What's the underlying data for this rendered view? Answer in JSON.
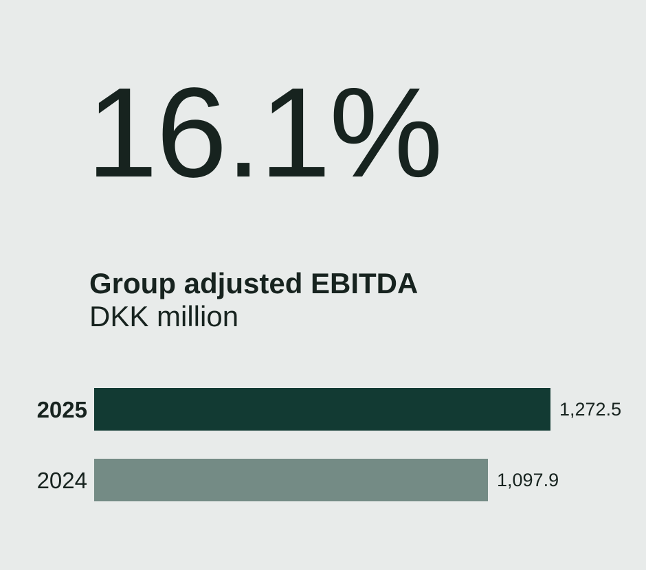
{
  "headline": "16.1%",
  "title_block": {
    "title": "Group adjusted EBITDA",
    "unit": "DKK million"
  },
  "colors": {
    "background": "#e8ebea",
    "text": "#17231f",
    "bar_current": "#123a33",
    "bar_previous": "#748b85"
  },
  "chart_data": {
    "type": "bar",
    "orientation": "horizontal",
    "title": "Group adjusted EBITDA",
    "unit": "DKK million",
    "categories": [
      "2025",
      "2024"
    ],
    "values": [
      1272.5,
      1097.9
    ],
    "value_labels": [
      "1,272.5",
      "1,097.9"
    ],
    "xlim": [
      0,
      1272.5
    ],
    "grid": false,
    "legend": false,
    "value_label_position": "right-of-bar"
  }
}
